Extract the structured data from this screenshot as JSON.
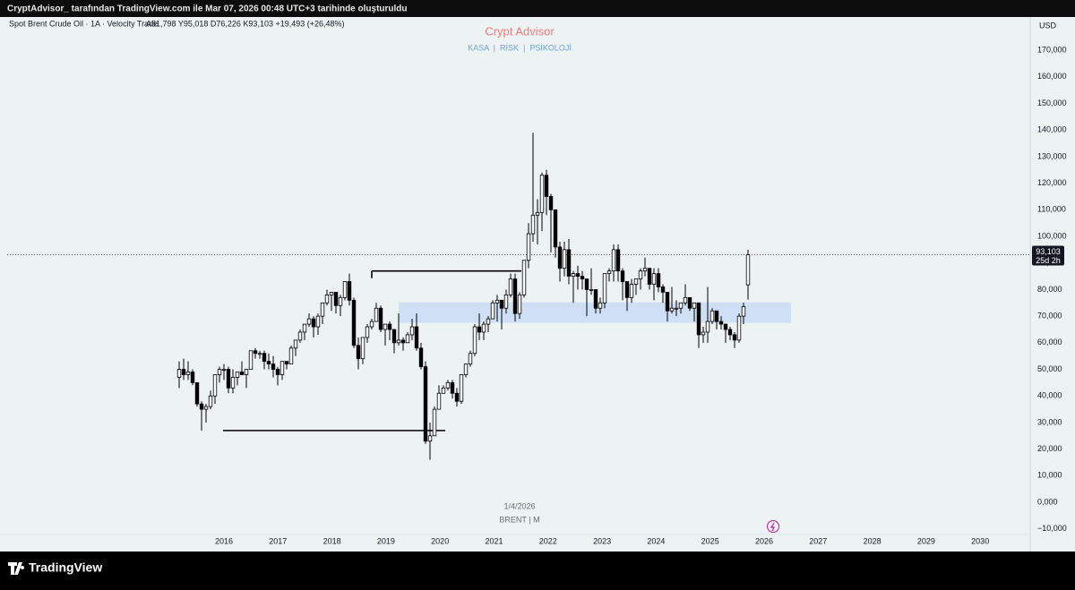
{
  "header": {
    "caption": "CryptAdvisor_ tarafından TradingView.com ile Mar 07, 2026 00:48 UTC+3 tarihinde oluşturuldu"
  },
  "footer": {
    "brand": "TradingView"
  },
  "chart_data": {
    "type": "candlestick",
    "symbol": "Spot Brent Crude Oil · 1A · Velocity Trade",
    "ohlc_text": "A81,798 Y95,018 D76,226 K93,103 +19,493 (+26,48%)",
    "title": "Crypt Advisor",
    "subtitle": "KASA  |  RİSK  |  PSİKOLOJİ",
    "currency": "USD",
    "date_label": "1/4/2026",
    "series_label": "BRENT | M",
    "last_price": 93.103,
    "last_price_label": "93,103",
    "countdown": "25d 2h",
    "years": [
      2016,
      2017,
      2018,
      2019,
      2020,
      2021,
      2022,
      2023,
      2024,
      2025,
      2026,
      2027,
      2028,
      2029,
      2030
    ],
    "ylim": [
      -12.1,
      182.5
    ],
    "yticks": [
      {
        "value": -10,
        "label": "−10,000"
      },
      {
        "value": 0,
        "label": "0,000"
      },
      {
        "value": 10,
        "label": "10,000"
      },
      {
        "value": 20,
        "label": "20,000"
      },
      {
        "value": 30,
        "label": "30,000"
      },
      {
        "value": 40,
        "label": "40,000"
      },
      {
        "value": 50,
        "label": "50,000"
      },
      {
        "value": 60,
        "label": "60,000"
      },
      {
        "value": 70,
        "label": "70,000"
      },
      {
        "value": 80,
        "label": "80,000"
      },
      {
        "value": 90,
        "label": "90,000"
      },
      {
        "value": 100,
        "label": "100,000"
      },
      {
        "value": 110,
        "label": "110,000"
      },
      {
        "value": 120,
        "label": "120,000"
      },
      {
        "value": 130,
        "label": "130,000"
      },
      {
        "value": 140,
        "label": "140,000"
      },
      {
        "value": 150,
        "label": "150,000"
      },
      {
        "value": 160,
        "label": "160,000"
      },
      {
        "value": 170,
        "label": "170,000"
      }
    ],
    "zone": [
      67.5,
      75.2
    ],
    "levels": [
      87,
      27
    ],
    "up_color": "#ffffff",
    "down_color": "#000000",
    "candles": [
      [
        47,
        53,
        43,
        50
      ],
      [
        50,
        54,
        46,
        48
      ],
      [
        48,
        53,
        46,
        49
      ],
      [
        49,
        50,
        44,
        45
      ],
      [
        45,
        45,
        36,
        37
      ],
      [
        37,
        38,
        27,
        35
      ],
      [
        35,
        37,
        30,
        36
      ],
      [
        36,
        42,
        35,
        40
      ],
      [
        40,
        48,
        37,
        48
      ],
      [
        48,
        51,
        45,
        50
      ],
      [
        50,
        52,
        46,
        50
      ],
      [
        50,
        51,
        41,
        43
      ],
      [
        43,
        50,
        41,
        47
      ],
      [
        47,
        49,
        44,
        49
      ],
      [
        49,
        53,
        48,
        48
      ],
      [
        48,
        50,
        43,
        50
      ],
      [
        50,
        57,
        50,
        57
      ],
      [
        57,
        58,
        54,
        56
      ],
      [
        56,
        57,
        54,
        56
      ],
      [
        56,
        57,
        50,
        53
      ],
      [
        53,
        56,
        50,
        52
      ],
      [
        52,
        55,
        47,
        50
      ],
      [
        50,
        51,
        44,
        48
      ],
      [
        48,
        53,
        46,
        53
      ],
      [
        53,
        53,
        50,
        52
      ],
      [
        52,
        59,
        52,
        58
      ],
      [
        58,
        61,
        55,
        61
      ],
      [
        61,
        65,
        60,
        64
      ],
      [
        64,
        67,
        61,
        67
      ],
      [
        67,
        71,
        66,
        69
      ],
      [
        69,
        70,
        62,
        66
      ],
      [
        66,
        71,
        63,
        70
      ],
      [
        70,
        75,
        67,
        75
      ],
      [
        75,
        80,
        74,
        78
      ],
      [
        78,
        79,
        72,
        79
      ],
      [
        79,
        79,
        71,
        74
      ],
      [
        74,
        78,
        70,
        77
      ],
      [
        77,
        83,
        76,
        83
      ],
      [
        83,
        86,
        74,
        76
      ],
      [
        76,
        77,
        58,
        59
      ],
      [
        59,
        62,
        50,
        54
      ],
      [
        54,
        62,
        52,
        62
      ],
      [
        62,
        67,
        60,
        66
      ],
      [
        66,
        69,
        65,
        68
      ],
      [
        68,
        75,
        68,
        73
      ],
      [
        73,
        74,
        64,
        65
      ],
      [
        65,
        67,
        59,
        67
      ],
      [
        67,
        68,
        61,
        65
      ],
      [
        65,
        65,
        56,
        60
      ],
      [
        60,
        71,
        59,
        61
      ],
      [
        61,
        62,
        57,
        60
      ],
      [
        60,
        64,
        60,
        63
      ],
      [
        63,
        69,
        61,
        66
      ],
      [
        66,
        71,
        57,
        58
      ],
      [
        58,
        60,
        50,
        51
      ],
      [
        51,
        53,
        22,
        23
      ],
      [
        23,
        30,
        16,
        25
      ],
      [
        25,
        36,
        25,
        35
      ],
      [
        35,
        44,
        35,
        41
      ],
      [
        41,
        44,
        41,
        43
      ],
      [
        43,
        46,
        42,
        45
      ],
      [
        45,
        46,
        39,
        41
      ],
      [
        41,
        43,
        36,
        38
      ],
      [
        38,
        48,
        37,
        48
      ],
      [
        48,
        52,
        47,
        52
      ],
      [
        52,
        57,
        51,
        56
      ],
      [
        56,
        67,
        55,
        66
      ],
      [
        66,
        71,
        61,
        64
      ],
      [
        64,
        68,
        61,
        67
      ],
      [
        67,
        70,
        64,
        69
      ],
      [
        69,
        76,
        69,
        75
      ],
      [
        75,
        78,
        68,
        76
      ],
      [
        76,
        76,
        65,
        73
      ],
      [
        73,
        80,
        71,
        78
      ],
      [
        78,
        86,
        77,
        84
      ],
      [
        84,
        86,
        68,
        71
      ],
      [
        71,
        79,
        69,
        78
      ],
      [
        78,
        91,
        77,
        91
      ],
      [
        91,
        105,
        88,
        101
      ],
      [
        101,
        139,
        98,
        108
      ],
      [
        108,
        114,
        97,
        109
      ],
      [
        109,
        124,
        102,
        123
      ],
      [
        123,
        125,
        108,
        115
      ],
      [
        115,
        116,
        94,
        110
      ],
      [
        110,
        110,
        92,
        96
      ],
      [
        96,
        98,
        83,
        88
      ],
      [
        88,
        98,
        85,
        95
      ],
      [
        95,
        99,
        82,
        85
      ],
      [
        85,
        87,
        75,
        86
      ],
      [
        86,
        89,
        80,
        85
      ],
      [
        85,
        87,
        80,
        84
      ],
      [
        84,
        84,
        70,
        80
      ],
      [
        80,
        88,
        78,
        80
      ],
      [
        80,
        80,
        71,
        73
      ],
      [
        73,
        77,
        71,
        75
      ],
      [
        75,
        86,
        73,
        86
      ],
      [
        86,
        88,
        83,
        87
      ],
      [
        87,
        97,
        83,
        95
      ],
      [
        95,
        97,
        83,
        87
      ],
      [
        87,
        88,
        76,
        83
      ],
      [
        83,
        83,
        72,
        77
      ],
      [
        77,
        84,
        75,
        82
      ],
      [
        82,
        84,
        78,
        84
      ],
      [
        84,
        88,
        80,
        87
      ],
      [
        87,
        92,
        85,
        88
      ],
      [
        88,
        88,
        80,
        82
      ],
      [
        82,
        88,
        76,
        86
      ],
      [
        86,
        88,
        79,
        81
      ],
      [
        81,
        82,
        75,
        79
      ],
      [
        79,
        79,
        68,
        72
      ],
      [
        72,
        81,
        71,
        73
      ],
      [
        73,
        76,
        70,
        73
      ],
      [
        73,
        75,
        71,
        75
      ],
      [
        75,
        82,
        74,
        77
      ],
      [
        77,
        77,
        72,
        73
      ],
      [
        73,
        75,
        68,
        75
      ],
      [
        75,
        75,
        58,
        63
      ],
      [
        63,
        66,
        60,
        64
      ],
      [
        64,
        81,
        60,
        68
      ],
      [
        68,
        73,
        67,
        72
      ],
      [
        72,
        72,
        65,
        68
      ],
      [
        68,
        70,
        65,
        67
      ],
      [
        67,
        67,
        60,
        65
      ],
      [
        65,
        66,
        61,
        63
      ],
      [
        63,
        64,
        58,
        61
      ],
      [
        61,
        71,
        60,
        70
      ],
      [
        70,
        75,
        67,
        73.61
      ],
      [
        81.798,
        95.018,
        76.226,
        93.103
      ]
    ]
  }
}
